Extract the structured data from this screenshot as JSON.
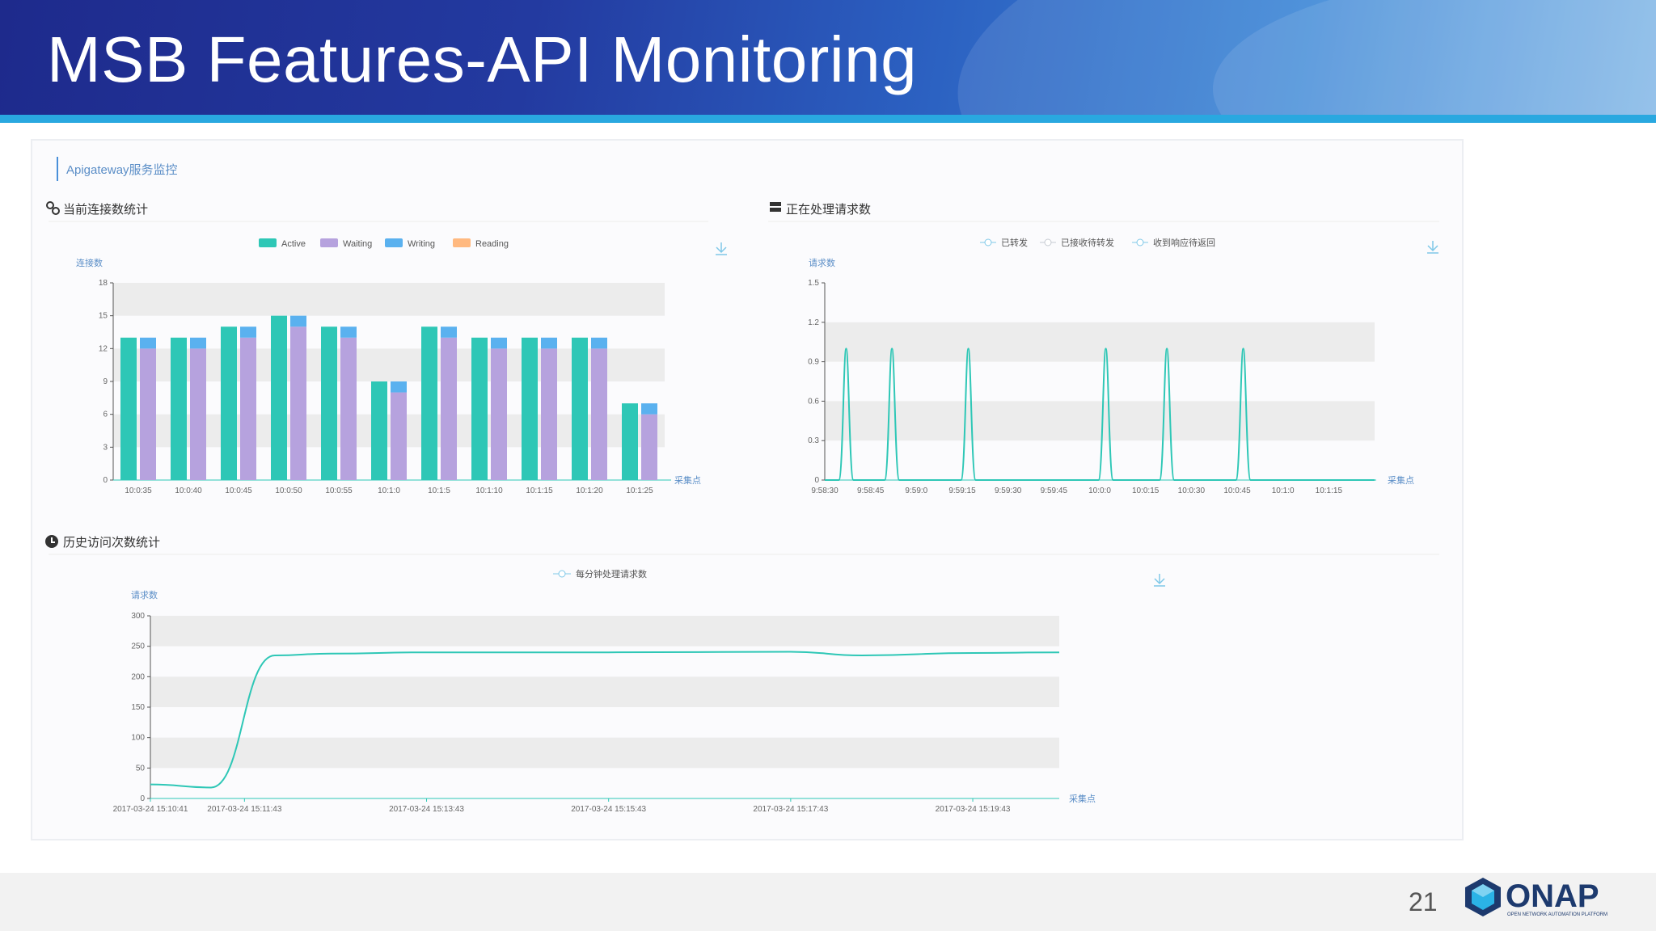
{
  "slide": {
    "title": "MSB Features-API Monitoring",
    "page_number": "21",
    "logo_text": "ONAP",
    "logo_subtitle": "OPEN NETWORK AUTOMATION PLATFORM"
  },
  "dashboard": {
    "header": "Apigateway服务监控",
    "panels": {
      "connections": "当前连接数统计",
      "processing": "正在处理请求数",
      "history": "历史访问次数统计"
    }
  },
  "colors": {
    "active": "#2ec7b6",
    "waiting": "#b6a2de",
    "writing": "#5ab1ef",
    "reading": "#ffb980",
    "line": "#2ec7b6",
    "axis_label": "#5b8ec7"
  },
  "chart_data": [
    {
      "type": "bar",
      "ylabel": "连接数",
      "xlabel": "采集点",
      "ylim": [
        0,
        18
      ],
      "yticks": [
        0,
        3,
        6,
        9,
        12,
        15,
        18
      ],
      "grid": "alternating bands",
      "legend_position": "top-center",
      "categories": [
        "10:0:35",
        "10:0:40",
        "10:0:45",
        "10:0:50",
        "10:0:55",
        "10:1:0",
        "10:1:5",
        "10:1:10",
        "10:1:15",
        "10:1:20",
        "10:1:25"
      ],
      "series": [
        {
          "name": "Active",
          "values": [
            13,
            13,
            14,
            15,
            14,
            9,
            14,
            13,
            13,
            13,
            7
          ]
        },
        {
          "name": "Waiting",
          "values": [
            12,
            12,
            13,
            14,
            13,
            8,
            13,
            12,
            12,
            12,
            6
          ]
        },
        {
          "name": "Writing",
          "values": [
            1,
            1,
            1,
            1,
            1,
            1,
            1,
            1,
            1,
            1,
            1
          ]
        },
        {
          "name": "Reading",
          "values": [
            0,
            0,
            0,
            0,
            0,
            0,
            0,
            0,
            0,
            0,
            0
          ]
        }
      ]
    },
    {
      "type": "line",
      "ylabel": "请求数",
      "xlabel": "采集点",
      "ylim": [
        0,
        1.5
      ],
      "yticks": [
        0,
        0.3,
        0.6,
        0.9,
        1.2,
        1.5
      ],
      "grid": "alternating bands",
      "legend_position": "top-center",
      "categories": [
        "9:58:30",
        "9:58:45",
        "9:59:0",
        "9:59:15",
        "9:59:30",
        "9:59:45",
        "10:0:0",
        "10:0:15",
        "10:0:30",
        "10:0:45",
        "10:1:0",
        "10:1:15"
      ],
      "series": [
        {
          "name": "已转发",
          "peaks_at": [
            "9:58:37",
            "9:58:52",
            "9:59:17",
            "10:0:2",
            "10:0:22",
            "10:0:47"
          ],
          "peak_value": 1.0
        },
        {
          "name": "已接收待转发",
          "peaks_at": [],
          "peak_value": 0
        },
        {
          "name": "收到响应待返回",
          "peaks_at": [],
          "peak_value": 0
        }
      ]
    },
    {
      "type": "line",
      "ylabel": "请求数",
      "xlabel": "采集点",
      "ylim": [
        0,
        300
      ],
      "yticks": [
        0,
        50,
        100,
        150,
        200,
        250,
        300
      ],
      "grid": "alternating bands",
      "legend_position": "top-center",
      "categories": [
        "2017-03-24 15:10:41",
        "2017-03-24 15:11:43",
        "2017-03-24 15:13:43",
        "2017-03-24 15:15:43",
        "2017-03-24 15:17:43",
        "2017-03-24 15:19:43"
      ],
      "series": [
        {
          "name": "每分钟处理请求数",
          "x": [
            "2017-03-24 15:10:41",
            "2017-03-24 15:11:21",
            "2017-03-24 15:12:03",
            "2017-03-24 15:12:40",
            "2017-03-24 15:13:43",
            "2017-03-24 15:15:43",
            "2017-03-24 15:17:43",
            "2017-03-24 15:18:30",
            "2017-03-24 15:19:43",
            "2017-03-24 15:20:40"
          ],
          "values": [
            23,
            18,
            235,
            238,
            240,
            240,
            241,
            235,
            239,
            240
          ]
        }
      ]
    }
  ]
}
